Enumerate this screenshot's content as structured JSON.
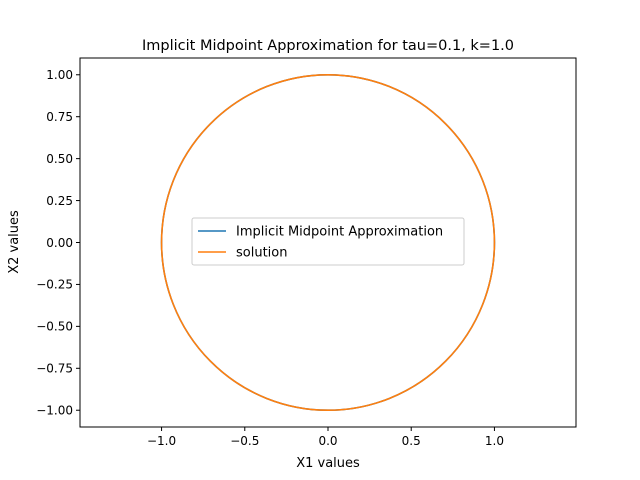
{
  "chart_data": {
    "type": "line",
    "title": "Implicit Midpoint Approximation for tau=0.1, k=1.0",
    "xlabel": "X1 values",
    "ylabel": "X2 values",
    "xlim": [
      -1.49,
      1.49
    ],
    "ylim": [
      -1.1,
      1.1
    ],
    "x_ticks": [
      -1.0,
      -0.5,
      0.0,
      0.5,
      1.0
    ],
    "x_tick_labels": [
      "−1.0",
      "−0.5",
      "0.0",
      "0.5",
      "1.0"
    ],
    "y_ticks": [
      -1.0,
      -0.75,
      -0.5,
      -0.25,
      0.0,
      0.25,
      0.5,
      0.75,
      1.0
    ],
    "y_tick_labels": [
      "−1.00",
      "−0.75",
      "−0.50",
      "−0.25",
      "0.00",
      "0.25",
      "0.50",
      "0.75",
      "1.00"
    ],
    "grid": false,
    "legend_position": "center",
    "series": [
      {
        "name": "Implicit Midpoint Approximation",
        "color": "#1f77b4",
        "shape": "unit-circle",
        "center": [
          0,
          0
        ],
        "radius": 1.0
      },
      {
        "name": "solution",
        "color": "#ff7f0e",
        "shape": "unit-circle",
        "center": [
          0,
          0
        ],
        "radius": 1.0
      }
    ]
  }
}
